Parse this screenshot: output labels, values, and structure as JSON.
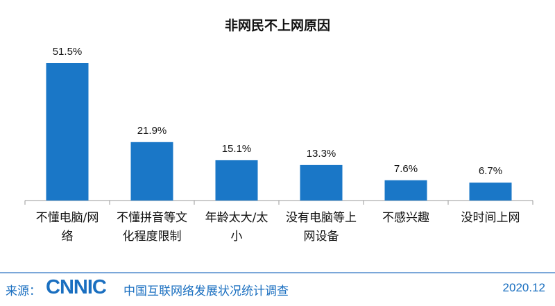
{
  "chart_data": {
    "type": "bar",
    "title": "非网民不上网原因",
    "categories": [
      [
        "不懂电脑/网",
        "络"
      ],
      [
        "不懂拼音等文",
        "化程度限制"
      ],
      [
        "年龄太大/太",
        "小"
      ],
      [
        "没有电脑等上",
        "网设备"
      ],
      [
        "不感兴趣"
      ],
      [
        "没时间上网"
      ]
    ],
    "values": [
      51.5,
      21.9,
      15.1,
      13.3,
      7.6,
      6.7
    ],
    "data_labels": [
      "51.5%",
      "21.9%",
      "15.1%",
      "13.3%",
      "7.6%",
      "6.7%"
    ],
    "ylim": [
      0,
      55
    ],
    "grid": false,
    "bar_color": "#1a77c7",
    "xlabel": "",
    "ylabel": ""
  },
  "footer": {
    "source_label": "来源：",
    "logo": "CNNIC",
    "source_text": "中国互联网络发展状况统计调查",
    "date": "2020.12"
  }
}
